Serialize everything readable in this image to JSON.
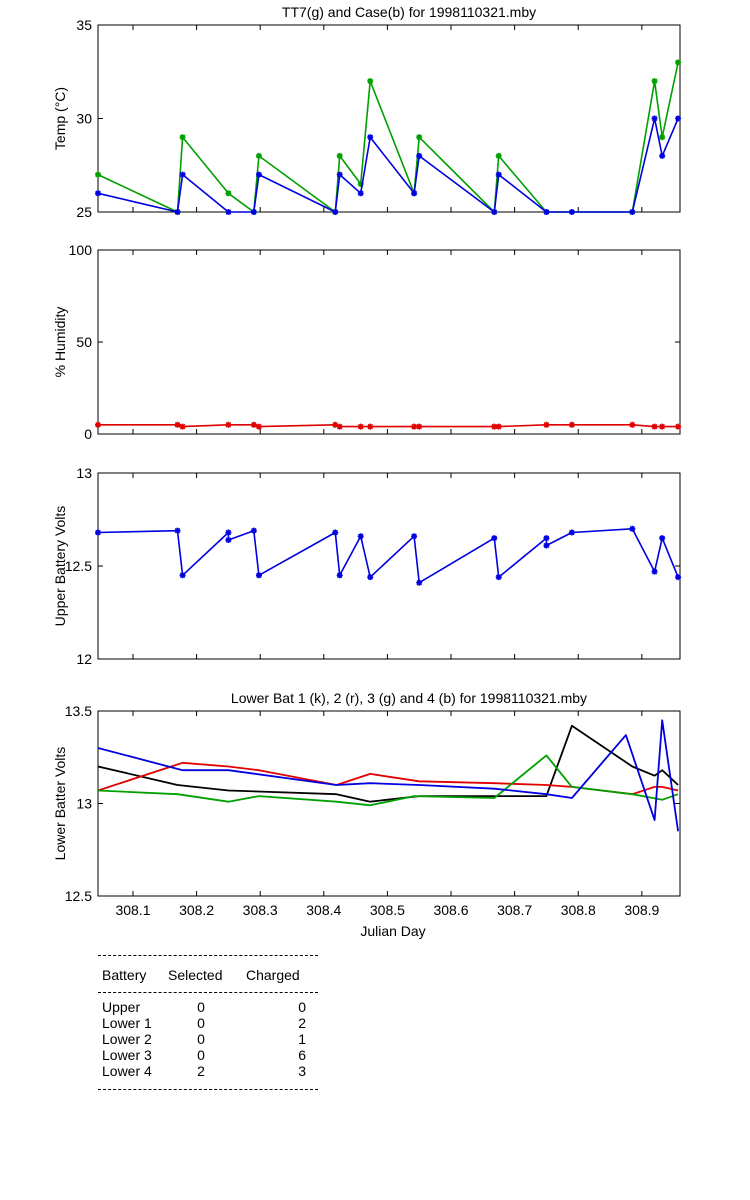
{
  "chart_data": [
    {
      "type": "line",
      "title": "TT7(g) and Case(b) for 1998110321.mby",
      "ylabel": "Temp  (°C)",
      "xlim": [
        308.045,
        308.96
      ],
      "ylim": [
        25,
        35
      ],
      "yticks": [
        "25",
        "30",
        "35"
      ],
      "series": [
        {
          "color": "#00a000",
          "marker": "*",
          "x": [
            308.045,
            308.17,
            308.178,
            308.25,
            308.29,
            308.298,
            308.418,
            308.425,
            308.458,
            308.473,
            308.542,
            308.55,
            308.668,
            308.675,
            308.75,
            308.885,
            308.92,
            308.932,
            308.957
          ],
          "y": [
            27,
            25,
            29,
            26,
            25,
            28,
            25,
            28,
            26.5,
            32,
            26,
            29,
            25,
            28,
            25,
            25,
            32,
            29,
            33
          ]
        },
        {
          "color": "#0000e0",
          "marker": "*",
          "x": [
            308.045,
            308.17,
            308.178,
            308.25,
            308.29,
            308.298,
            308.418,
            308.425,
            308.458,
            308.473,
            308.542,
            308.55,
            308.668,
            308.675,
            308.75,
            308.79,
            308.885,
            308.92,
            308.932,
            308.957
          ],
          "y": [
            26,
            25,
            27,
            25,
            25,
            27,
            25,
            27,
            26,
            29,
            26,
            28,
            25,
            27,
            25,
            25,
            25,
            30,
            28,
            30
          ]
        }
      ]
    },
    {
      "type": "line",
      "title": "",
      "ylabel": "% Humidity",
      "xlim": [
        308.045,
        308.96
      ],
      "ylim": [
        0,
        100
      ],
      "yticks": [
        "0",
        "50",
        "100"
      ],
      "series": [
        {
          "color": "#e00000",
          "marker": "*",
          "x": [
            308.045,
            308.17,
            308.178,
            308.25,
            308.29,
            308.298,
            308.418,
            308.425,
            308.458,
            308.473,
            308.542,
            308.55,
            308.668,
            308.675,
            308.75,
            308.79,
            308.885,
            308.92,
            308.932,
            308.957
          ],
          "y": [
            5,
            5,
            4,
            5,
            5,
            4,
            5,
            4,
            4,
            4,
            4,
            4,
            4,
            4,
            5,
            5,
            5,
            4,
            4,
            4
          ]
        }
      ]
    },
    {
      "type": "line",
      "title": "",
      "ylabel": "Upper Battery Volts",
      "xlim": [
        308.045,
        308.96
      ],
      "ylim": [
        12,
        13
      ],
      "yticks": [
        "12",
        "12.5",
        "13"
      ],
      "series": [
        {
          "color": "#0000e0",
          "marker": "*",
          "x": [
            308.045,
            308.17,
            308.178,
            308.25,
            308.25,
            308.29,
            308.298,
            308.418,
            308.425,
            308.458,
            308.473,
            308.542,
            308.55,
            308.668,
            308.675,
            308.75,
            308.75,
            308.79,
            308.885,
            308.92,
            308.932,
            308.957
          ],
          "y": [
            12.68,
            12.69,
            12.45,
            12.68,
            12.64,
            12.69,
            12.45,
            12.68,
            12.45,
            12.66,
            12.44,
            12.66,
            12.41,
            12.65,
            12.44,
            12.65,
            12.61,
            12.68,
            12.7,
            12.47,
            12.65,
            12.44
          ]
        }
      ]
    },
    {
      "type": "line",
      "title": "Lower Bat 1 (k), 2 (r), 3 (g) and 4 (b) for 1998110321.mby",
      "xlabel": "Julian Day",
      "ylabel": "Lower Batter Volts",
      "xlim": [
        308.045,
        308.96
      ],
      "ylim": [
        12.5,
        13.5
      ],
      "yticks": [
        "12.5",
        "13",
        "13.5"
      ],
      "xticks": [
        308.1,
        308.2,
        308.3,
        308.4,
        308.5,
        308.6,
        308.7,
        308.8,
        308.9
      ],
      "xticklabels": [
        "308.1",
        "308.2",
        "308.3",
        "308.4",
        "308.5",
        "308.6",
        "308.7",
        "308.8",
        "308.9"
      ],
      "series": [
        {
          "color": "#000000",
          "x": [
            308.045,
            308.17,
            308.25,
            308.42,
            308.473,
            308.55,
            308.75,
            308.79,
            308.885,
            308.92,
            308.932,
            308.957
          ],
          "y": [
            13.2,
            13.1,
            13.07,
            13.05,
            13.01,
            13.04,
            13.04,
            13.42,
            13.2,
            13.15,
            13.18,
            13.1
          ]
        },
        {
          "color": "#e00000",
          "x": [
            308.045,
            308.178,
            308.25,
            308.298,
            308.42,
            308.473,
            308.55,
            308.668,
            308.75,
            308.79,
            308.885,
            308.92,
            308.932,
            308.957
          ],
          "y": [
            13.07,
            13.22,
            13.2,
            13.18,
            13.1,
            13.16,
            13.12,
            13.11,
            13.1,
            13.09,
            13.05,
            13.09,
            13.09,
            13.07
          ]
        },
        {
          "color": "#00a000",
          "x": [
            308.045,
            308.17,
            308.25,
            308.298,
            308.42,
            308.473,
            308.542,
            308.668,
            308.75,
            308.79,
            308.885,
            308.932,
            308.957
          ],
          "y": [
            13.07,
            13.05,
            13.01,
            13.04,
            13.01,
            12.99,
            13.04,
            13.03,
            13.26,
            13.09,
            13.05,
            13.02,
            13.05
          ]
        },
        {
          "color": "#0000e0",
          "x": [
            308.045,
            308.178,
            308.25,
            308.42,
            308.473,
            308.55,
            308.668,
            308.75,
            308.79,
            308.875,
            308.92,
            308.932,
            308.957
          ],
          "y": [
            13.3,
            13.18,
            13.18,
            13.1,
            13.11,
            13.1,
            13.08,
            13.05,
            13.03,
            13.37,
            12.91,
            13.45,
            12.85
          ]
        }
      ]
    }
  ],
  "battery_table": {
    "headers": [
      "Battery",
      "Selected",
      "Charged"
    ],
    "rows": [
      {
        "battery": "Upper",
        "selected": "0",
        "charged": "0"
      },
      {
        "battery": "Lower 1",
        "selected": "0",
        "charged": "2"
      },
      {
        "battery": "Lower 2",
        "selected": "0",
        "charged": "1"
      },
      {
        "battery": "Lower 3",
        "selected": "0",
        "charged": "6"
      },
      {
        "battery": "Lower 4",
        "selected": "2",
        "charged": "3"
      }
    ]
  }
}
